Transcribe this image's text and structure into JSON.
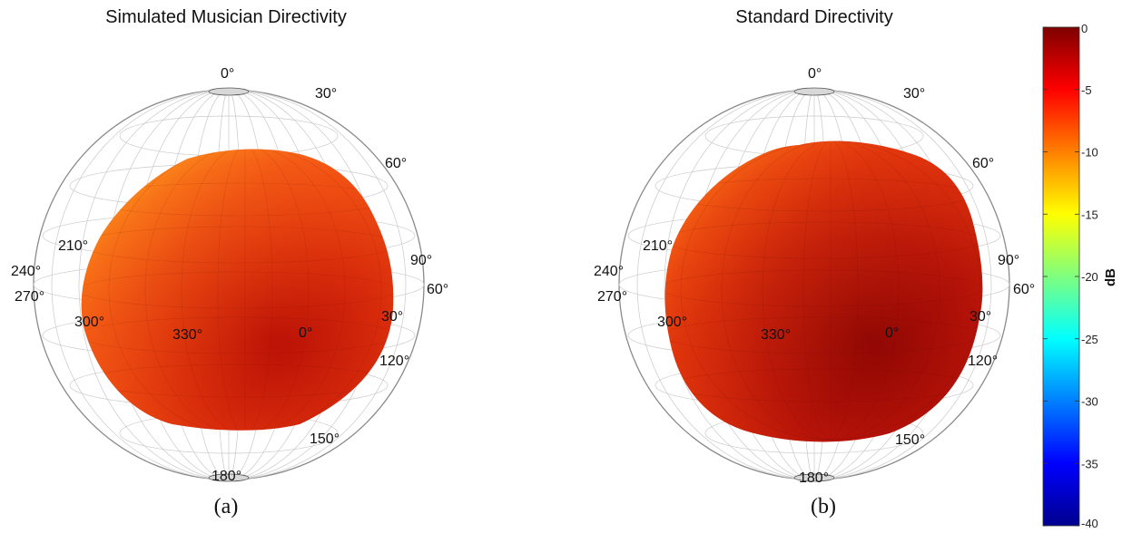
{
  "chart_data": [
    {
      "type": "other",
      "subtype": "3d-spherical-directivity-balloon",
      "title": "Simulated Musician Directivity",
      "panel_label": "(a)",
      "angle_labels": [
        "0°",
        "30°",
        "60°",
        "90°",
        "60°",
        "30°",
        "120°",
        "150°",
        "180°",
        "210°",
        "240°",
        "270°",
        "300°",
        "330°",
        "0°"
      ],
      "surface_level_db": [
        -8,
        -3
      ],
      "grid": true
    },
    {
      "type": "other",
      "subtype": "3d-spherical-directivity-balloon",
      "title": "Standard Directivity",
      "panel_label": "(b)",
      "angle_labels": [
        "0°",
        "30°",
        "60°",
        "90°",
        "60°",
        "30°",
        "120°",
        "150°",
        "180°",
        "210°",
        "240°",
        "270°",
        "300°",
        "330°",
        "0°"
      ],
      "surface_level_db": [
        -7,
        -1
      ],
      "grid": true
    }
  ],
  "colorbar": {
    "label": "dB",
    "range": [
      -40,
      0
    ],
    "ticks": [
      "0",
      "-5",
      "-10",
      "-15",
      "-20",
      "-25",
      "-30",
      "-35",
      "-40"
    ],
    "colormap": "jet"
  }
}
